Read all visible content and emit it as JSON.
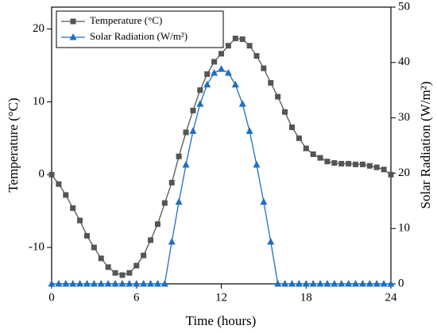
{
  "chart_data": {
    "type": "line",
    "xlabel": "Time (hours)",
    "ylabel": "Temperature (°C)",
    "y2label": "Solar Radiation (W/m²)",
    "x": [
      0,
      0.5,
      1,
      1.5,
      2,
      2.5,
      3,
      3.5,
      4,
      4.5,
      5,
      5.5,
      6,
      6.5,
      7,
      7.5,
      8,
      8.5,
      9,
      9.5,
      10,
      10.5,
      11,
      11.5,
      12,
      12.5,
      13,
      13.5,
      14,
      14.5,
      15,
      15.5,
      16,
      16.5,
      17,
      17.5,
      18,
      18.5,
      19,
      19.5,
      20,
      20.5,
      21,
      21.5,
      22,
      22.5,
      23,
      23.5,
      24
    ],
    "series": [
      {
        "name": "Temperature (°C)",
        "color": "#555555",
        "marker": "square",
        "values": [
          0,
          -1.3,
          -2.8,
          -4.6,
          -6.3,
          -8.4,
          -10,
          -11.5,
          -12.7,
          -13.5,
          -13.8,
          -13.5,
          -12.5,
          -11.1,
          -9,
          -6.8,
          -3.9,
          -1.1,
          2.5,
          5.8,
          8.8,
          11.6,
          13.8,
          15.5,
          16.6,
          17.7,
          18.7,
          18.6,
          17.7,
          16.3,
          14.6,
          12.6,
          10.7,
          8.6,
          6.5,
          5,
          3.6,
          2.8,
          2.3,
          1.8,
          1.6,
          1.5,
          1.5,
          1.4,
          1.4,
          1.2,
          1,
          0.7,
          0
        ]
      },
      {
        "name": "Solar Radiation (W/m²)",
        "color": "#1f6fbf",
        "marker": "triangle",
        "axis": "y2",
        "values": [
          0,
          0,
          0,
          0,
          0,
          0,
          0,
          0,
          0,
          0,
          0,
          0,
          0,
          0,
          0,
          0,
          0,
          7.6,
          14.8,
          21.5,
          27.6,
          32.5,
          36,
          38.1,
          38.8,
          38.1,
          36,
          32.5,
          27.6,
          21.5,
          14.8,
          7.6,
          0,
          0,
          0,
          0,
          0,
          0,
          0,
          0,
          0,
          0,
          0,
          0,
          0,
          0,
          0,
          0,
          0
        ]
      }
    ],
    "xlim": [
      0,
      24
    ],
    "xticks": [
      0,
      6,
      12,
      18,
      24
    ],
    "ylim": [
      -15,
      23
    ],
    "yticks": [
      -10,
      0,
      10,
      20
    ],
    "y2lim": [
      0,
      50
    ],
    "y2ticks": [
      0,
      10,
      20,
      30,
      40,
      50
    ],
    "legend": "upper left"
  }
}
